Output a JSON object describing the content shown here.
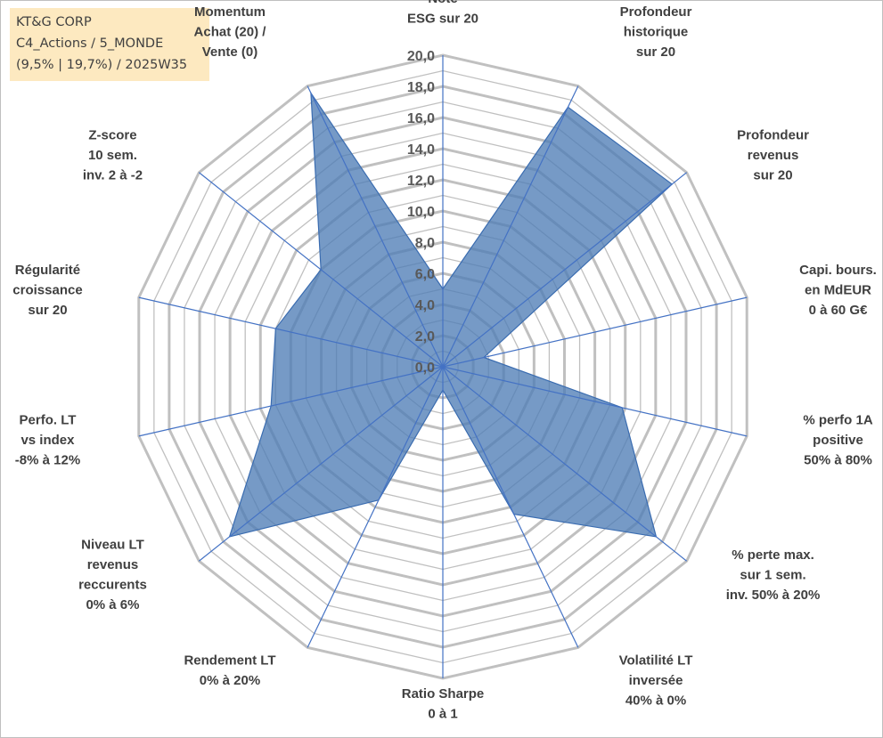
{
  "info": {
    "line1": "KT&G CORP",
    "line2": "C4_Actions / 5_MONDE",
    "line3": "(9,5% | 19,7%) / 2025W35"
  },
  "chart_data": {
    "type": "radar",
    "title": "",
    "rmax": 20,
    "ticks": [
      "0,0",
      "2,0",
      "4,0",
      "6,0",
      "8,0",
      "10,0",
      "12,0",
      "14,0",
      "16,0",
      "18,0",
      "20,0"
    ],
    "tick_values": [
      0,
      2,
      4,
      6,
      8,
      10,
      12,
      14,
      16,
      18,
      20
    ],
    "axes": [
      {
        "label": [
          "Note",
          "ESG sur 20"
        ],
        "value": 5.0
      },
      {
        "label": [
          "Profondeur",
          "historique",
          "sur 20"
        ],
        "value": 18.5
      },
      {
        "label": [
          "Profondeur",
          "revenus",
          "sur 20"
        ],
        "value": 18.8
      },
      {
        "label": [
          "Capi. bours.",
          "en MdEUR",
          "0 à 60 G€"
        ],
        "value": 2.7
      },
      {
        "label": [
          "% perfo 1A",
          "positive",
          "50% à 80%"
        ],
        "value": 11.8
      },
      {
        "label": [
          "% perte max.",
          "sur 1 sem.",
          "inv. 50% à 20%"
        ],
        "value": 17.5
      },
      {
        "label": [
          "Volatilité LT",
          "inversée",
          "40% à 0%"
        ],
        "value": 10.5
      },
      {
        "label": [
          "Ratio Sharpe",
          "0 à 1"
        ],
        "value": 1.5
      },
      {
        "label": [
          "Rendement LT",
          "0% à 20%"
        ],
        "value": 9.5
      },
      {
        "label": [
          "Niveau LT",
          "revenus",
          "reccurents",
          "0% à 6%"
        ],
        "value": 17.5
      },
      {
        "label": [
          "Perfo. LT",
          "vs index",
          "-8% à 12%"
        ],
        "value": 11.3
      },
      {
        "label": [
          "Régularité",
          "croissance",
          "sur 20"
        ],
        "value": 11.0
      },
      {
        "label": [
          "Z-score",
          "10 sem.",
          "inv. 2 à -2"
        ],
        "value": 10.0
      },
      {
        "label": [
          "Momentum",
          "Achat (20) /",
          "Vente (0)"
        ],
        "value": 19.5
      }
    ],
    "series": [
      {
        "values": [
          5.0,
          18.5,
          18.8,
          2.7,
          11.8,
          17.5,
          10.5,
          1.5,
          9.5,
          17.5,
          11.3,
          11.0,
          10.0,
          19.5
        ]
      }
    ],
    "colors": {
      "fill": "#4f7eb6",
      "stroke": "#3a6cb0",
      "grid": "#c0c0c0",
      "axis": "#4472c4"
    },
    "grid": true,
    "legend": "none"
  }
}
